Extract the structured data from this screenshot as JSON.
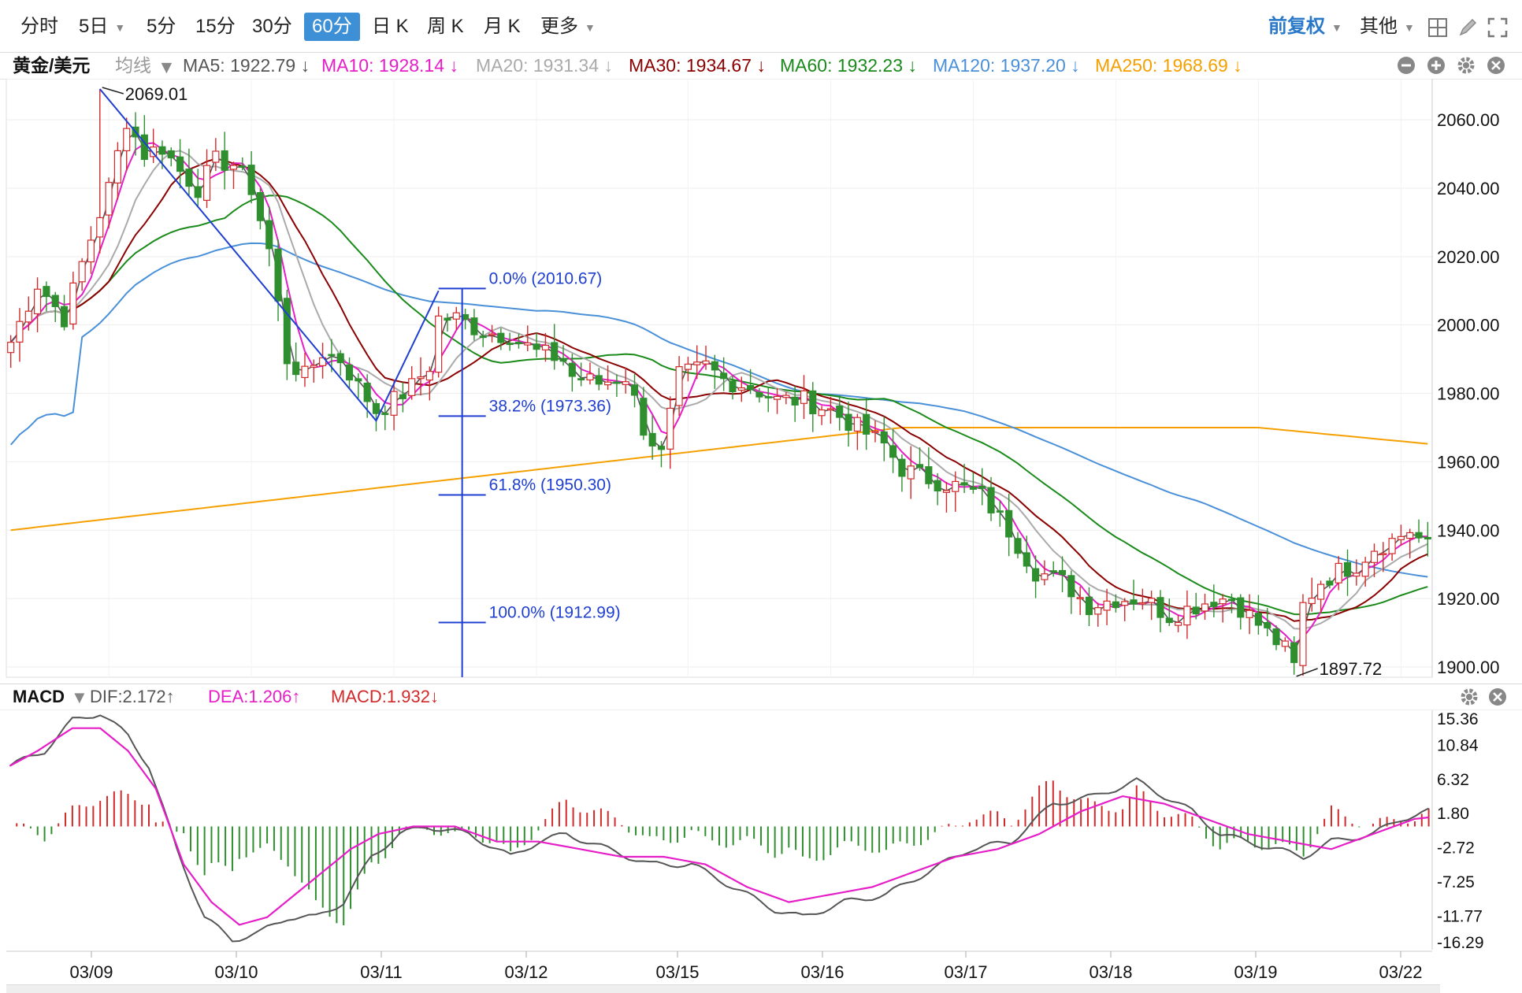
{
  "toolbar": {
    "tabs": [
      {
        "label": "分时",
        "caret": false
      },
      {
        "label": "5日",
        "caret": true
      },
      {
        "label": "5分",
        "caret": false
      },
      {
        "label": "15分",
        "caret": false
      },
      {
        "label": "30分",
        "caret": false
      },
      {
        "label": "60分",
        "caret": false,
        "active": true
      },
      {
        "label": "日 K",
        "caret": false
      },
      {
        "label": "周 K",
        "caret": false
      },
      {
        "label": "月 K",
        "caret": false
      },
      {
        "label": "更多",
        "caret": true
      }
    ],
    "adjust_label": "前复权",
    "other_label": "其他",
    "icons": [
      "grid-icon",
      "draw-pen-icon",
      "fullscreen-icon"
    ]
  },
  "ma_bar": {
    "symbol": "黄金/美元",
    "avg_label": "均线",
    "ma5": "MA5: 1922.79 ↓",
    "ma10": "MA10: 1928.14 ↓",
    "ma20": "MA20: 1931.34 ↓",
    "ma30": "MA30: 1934.67 ↓",
    "ma60": "MA60: 1932.23 ↓",
    "ma120": "MA120: 1937.20 ↓",
    "ma250": "MA250: 1968.69 ↓",
    "icons": [
      "minus-circle-icon",
      "plus-circle-icon",
      "gear-icon",
      "close-circle-icon"
    ]
  },
  "macd_bar": {
    "name": "MACD",
    "dif": "DIF:2.172↑",
    "dea": "DEA:1.206↑",
    "macd": "MACD:1.932↓"
  },
  "colors": {
    "up": "#d12a2a",
    "down": "#2f8f2f",
    "ma5": "#555555",
    "ma10": "#e61ec8",
    "ma20": "#aaaaaa",
    "ma30": "#8b0000",
    "ma60": "#1a8a1a",
    "ma120": "#4a90d9",
    "ma250": "#f5a000",
    "fib": "#1f3fd1",
    "dea": "#e61ec8",
    "dif": "#555555"
  },
  "chart_data": [
    {
      "type": "candlestick",
      "symbol": "黄金/美元",
      "interval": "60分",
      "ylim": [
        1897,
        2072
      ],
      "y_ticks": [
        "2060.00",
        "2040.00",
        "2020.00",
        "2000.00",
        "1980.00",
        "1960.00",
        "1940.00",
        "1920.00",
        "1900.00"
      ],
      "x_ticks": [
        "03/09",
        "03/10",
        "03/11",
        "03/12",
        "03/15",
        "03/16",
        "03/17",
        "03/18",
        "03/19",
        "03/22"
      ],
      "bars": 160,
      "close_anchors": [
        [
          0,
          1995
        ],
        [
          3,
          2012
        ],
        [
          6,
          2002
        ],
        [
          8,
          2018
        ],
        [
          11,
          2040
        ],
        [
          13,
          2060
        ],
        [
          15,
          2050
        ],
        [
          17,
          2052
        ],
        [
          19,
          2045
        ],
        [
          21,
          2040
        ],
        [
          23,
          2048
        ],
        [
          25,
          2047
        ],
        [
          27,
          2040
        ],
        [
          29,
          2022
        ],
        [
          31,
          1990
        ],
        [
          33,
          1985
        ],
        [
          35,
          1992
        ],
        [
          37,
          1990
        ],
        [
          39,
          1982
        ],
        [
          41,
          1975
        ],
        [
          43,
          1978
        ],
        [
          45,
          1982
        ],
        [
          47,
          1988
        ],
        [
          48,
          2002
        ],
        [
          50,
          2002
        ],
        [
          53,
          1998
        ],
        [
          56,
          1997
        ],
        [
          59,
          1992
        ],
        [
          62,
          1990
        ],
        [
          63,
          1985
        ],
        [
          66,
          1983
        ],
        [
          69,
          1985
        ],
        [
          70,
          1978
        ],
        [
          71,
          1970
        ],
        [
          73,
          1962
        ],
        [
          75,
          1985
        ],
        [
          78,
          1988
        ],
        [
          80,
          1984
        ],
        [
          83,
          1982
        ],
        [
          86,
          1978
        ],
        [
          89,
          1978
        ],
        [
          92,
          1975
        ],
        [
          95,
          1970
        ],
        [
          98,
          1965
        ],
        [
          100,
          1958
        ],
        [
          103,
          1955
        ],
        [
          106,
          1953
        ],
        [
          109,
          1950
        ],
        [
          112,
          1940
        ],
        [
          115,
          1928
        ],
        [
          118,
          1925
        ],
        [
          121,
          1918
        ],
        [
          124,
          1920
        ],
        [
          127,
          1920
        ],
        [
          130,
          1915
        ],
        [
          133,
          1918
        ],
        [
          135,
          1920
        ],
        [
          137,
          1920
        ],
        [
          139,
          1915
        ],
        [
          141,
          1910
        ],
        [
          143,
          1905
        ],
        [
          144,
          1900
        ],
        [
          145,
          1918
        ],
        [
          147,
          1925
        ],
        [
          149,
          1928
        ],
        [
          151,
          1930
        ],
        [
          153,
          1935
        ],
        [
          155,
          1937
        ],
        [
          157,
          1940
        ],
        [
          159,
          1935
        ],
        [
          160,
          1935
        ]
      ],
      "ma_values": {
        "MA5": 1922.79,
        "MA10": 1928.14,
        "MA20": 1931.34,
        "MA30": 1934.67,
        "MA60": 1932.23,
        "MA120": 1937.2,
        "MA250": 1968.69
      },
      "annotations": [
        {
          "text": "2069.01",
          "x": 10,
          "y": 2069.01,
          "kind": "high"
        },
        {
          "text": "1897.72",
          "x": 144,
          "y": 1897.72,
          "kind": "low"
        }
      ],
      "fibonacci": {
        "levels": [
          {
            "label": "0.0% (2010.67)",
            "value": 2010.67
          },
          {
            "label": "38.2% (1973.36)",
            "value": 1973.36
          },
          {
            "label": "61.8% (1950.30)",
            "value": 1950.3
          },
          {
            "label": "100.0% (1912.99)",
            "value": 1912.99
          }
        ],
        "trend_points": [
          [
            10,
            2069
          ],
          [
            41,
            1972
          ],
          [
            48,
            2010
          ]
        ]
      }
    },
    {
      "type": "macd",
      "ylim": [
        -16.29,
        15.36
      ],
      "y_ticks": [
        "15.36",
        "10.84",
        "6.32",
        "1.80",
        "-2.72",
        "-7.25",
        "-11.77",
        "-16.29"
      ],
      "dif_anchors": [
        [
          0,
          8
        ],
        [
          5,
          10
        ],
        [
          9,
          14
        ],
        [
          13,
          15
        ],
        [
          17,
          12
        ],
        [
          20,
          8
        ],
        [
          24,
          -3
        ],
        [
          28,
          -12
        ],
        [
          32,
          -15
        ],
        [
          36,
          -14
        ],
        [
          40,
          -12
        ],
        [
          44,
          -12
        ],
        [
          48,
          -10
        ],
        [
          52,
          -4
        ],
        [
          56,
          -1
        ],
        [
          60,
          0
        ],
        [
          66,
          -1
        ],
        [
          72,
          -4
        ],
        [
          76,
          -2
        ],
        [
          80,
          -1
        ],
        [
          86,
          -3
        ],
        [
          92,
          -5
        ],
        [
          98,
          -5
        ],
        [
          104,
          -8
        ],
        [
          110,
          -11
        ],
        [
          114,
          -12
        ],
        [
          120,
          -10
        ],
        [
          126,
          -9
        ],
        [
          132,
          -6
        ],
        [
          138,
          -3
        ],
        [
          144,
          -2
        ],
        [
          150,
          3
        ],
        [
          156,
          4
        ],
        [
          162,
          6
        ],
        [
          166,
          4
        ],
        [
          170,
          2
        ],
        [
          174,
          -1
        ],
        [
          178,
          -2
        ],
        [
          182,
          -3
        ],
        [
          186,
          -4
        ],
        [
          190,
          -2
        ],
        [
          196,
          -1
        ],
        [
          200,
          1
        ],
        [
          204,
          2
        ]
      ],
      "dea_anchors": [
        [
          0,
          8
        ],
        [
          4,
          10
        ],
        [
          9,
          13
        ],
        [
          13,
          13
        ],
        [
          17,
          10
        ],
        [
          21,
          5
        ],
        [
          25,
          -5
        ],
        [
          29,
          -10
        ],
        [
          33,
          -13
        ],
        [
          37,
          -12
        ],
        [
          41,
          -9
        ],
        [
          45,
          -6
        ],
        [
          49,
          -3
        ],
        [
          53,
          -1
        ],
        [
          58,
          0
        ],
        [
          64,
          0
        ],
        [
          70,
          -2
        ],
        [
          76,
          -2
        ],
        [
          82,
          -3
        ],
        [
          88,
          -4
        ],
        [
          94,
          -4
        ],
        [
          100,
          -5
        ],
        [
          106,
          -8
        ],
        [
          112,
          -10
        ],
        [
          118,
          -9
        ],
        [
          124,
          -8
        ],
        [
          130,
          -6
        ],
        [
          136,
          -4
        ],
        [
          142,
          -3
        ],
        [
          148,
          -1
        ],
        [
          154,
          2
        ],
        [
          160,
          4
        ],
        [
          166,
          3
        ],
        [
          172,
          1
        ],
        [
          178,
          -1
        ],
        [
          184,
          -2
        ],
        [
          190,
          -3
        ],
        [
          196,
          -1
        ],
        [
          202,
          1
        ],
        [
          204,
          1.2
        ]
      ]
    }
  ]
}
